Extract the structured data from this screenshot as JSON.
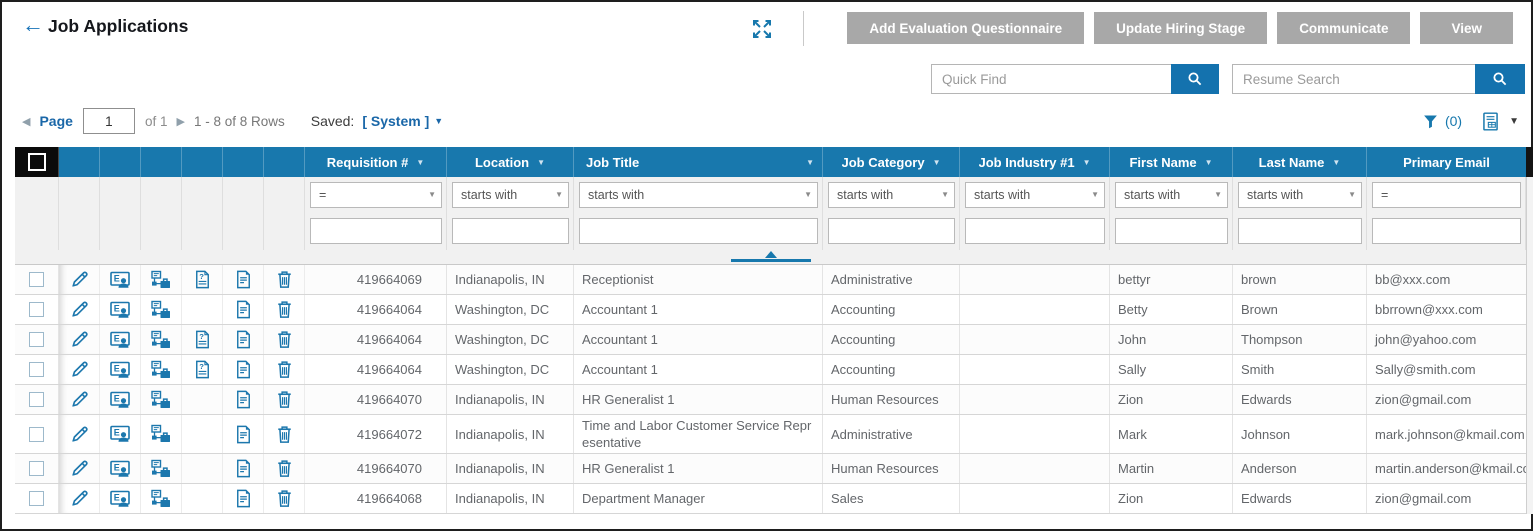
{
  "colors": {
    "header_blue": "#1878ad",
    "accent_blue": "#1778ad",
    "link_blue": "#1a67a8",
    "button_gray": "#a8a8a8"
  },
  "page": {
    "title": "Job Applications"
  },
  "toolbar_buttons": [
    {
      "label": "Add Evaluation Questionnaire"
    },
    {
      "label": "Update Hiring Stage"
    },
    {
      "label": "Communicate"
    },
    {
      "label": "View"
    }
  ],
  "search": {
    "quick_find_placeholder": "Quick Find",
    "resume_search_placeholder": "Resume Search"
  },
  "pagination": {
    "page_label": "Page",
    "page_value": "1",
    "of_label": "of 1",
    "rows_label": "1 - 8 of 8 Rows",
    "saved_label": "Saved:",
    "saved_value": "[ System ]"
  },
  "filter_bar": {
    "filter_count": "(0)"
  },
  "table": {
    "actions": [
      {
        "name": "edit",
        "icon": "pencil-icon"
      },
      {
        "name": "evaluation",
        "icon": "evaluation-screen-icon"
      },
      {
        "name": "workflow",
        "icon": "hiring-workflow-icon"
      },
      {
        "name": "questionnaire",
        "icon": "questionnaire-document-icon"
      },
      {
        "name": "notes",
        "icon": "document-icon"
      },
      {
        "name": "delete",
        "icon": "trash-icon"
      }
    ],
    "columns": [
      {
        "label": "Requisition #",
        "sortable": true,
        "filter_op": "="
      },
      {
        "label": "Location",
        "sortable": true,
        "filter_op": "starts with"
      },
      {
        "label": "Job Title",
        "sortable": true,
        "filter_op": "starts with"
      },
      {
        "label": "Job Category",
        "sortable": true,
        "filter_op": "starts with"
      },
      {
        "label": "Job Industry #1",
        "sortable": true,
        "filter_op": "starts with"
      },
      {
        "label": "First Name",
        "sortable": true,
        "filter_op": "starts with"
      },
      {
        "label": "Last Name",
        "sortable": true,
        "filter_op": "starts with"
      },
      {
        "label": "Primary Email",
        "sortable": false,
        "filter_op": "="
      }
    ],
    "rows": [
      {
        "requisition": "419664069",
        "location": "Indianapolis, IN",
        "job_title": "Receptionist",
        "job_category": "Administrative",
        "job_industry": "",
        "first_name": "bettyr",
        "last_name": "brown",
        "email": "bb@xxx.com",
        "has_questionnaire": true
      },
      {
        "requisition": "419664064",
        "location": "Washington, DC",
        "job_title": "Accountant 1",
        "job_category": "Accounting",
        "job_industry": "",
        "first_name": "Betty",
        "last_name": "Brown",
        "email": "bbrrown@xxx.com",
        "has_questionnaire": false
      },
      {
        "requisition": "419664064",
        "location": "Washington, DC",
        "job_title": "Accountant 1",
        "job_category": "Accounting",
        "job_industry": "",
        "first_name": "John",
        "last_name": "Thompson",
        "email": "john@yahoo.com",
        "has_questionnaire": true
      },
      {
        "requisition": "419664064",
        "location": "Washington, DC",
        "job_title": "Accountant 1",
        "job_category": "Accounting",
        "job_industry": "",
        "first_name": "Sally",
        "last_name": "Smith",
        "email": "Sally@smith.com",
        "has_questionnaire": true
      },
      {
        "requisition": "419664070",
        "location": "Indianapolis, IN",
        "job_title": "HR Generalist 1",
        "job_category": "Human Resources",
        "job_industry": "",
        "first_name": "Zion",
        "last_name": "Edwards",
        "email": "zion@gmail.com",
        "has_questionnaire": false
      },
      {
        "requisition": "419664072",
        "location": "Indianapolis, IN",
        "job_title": "Time and Labor Customer Service Representative",
        "job_category": "Administrative",
        "job_industry": "",
        "first_name": "Mark",
        "last_name": "Johnson",
        "email": "mark.johnson@kmail.com",
        "has_questionnaire": false
      },
      {
        "requisition": "419664070",
        "location": "Indianapolis, IN",
        "job_title": "HR Generalist 1",
        "job_category": "Human Resources",
        "job_industry": "",
        "first_name": "Martin",
        "last_name": "Anderson",
        "email": "martin.anderson@kmail.com",
        "has_questionnaire": false
      },
      {
        "requisition": "419664068",
        "location": "Indianapolis, IN",
        "job_title": "Department Manager",
        "job_category": "Sales",
        "job_industry": "",
        "first_name": "Zion",
        "last_name": "Edwards",
        "email": "zion@gmail.com",
        "has_questionnaire": false
      }
    ]
  }
}
